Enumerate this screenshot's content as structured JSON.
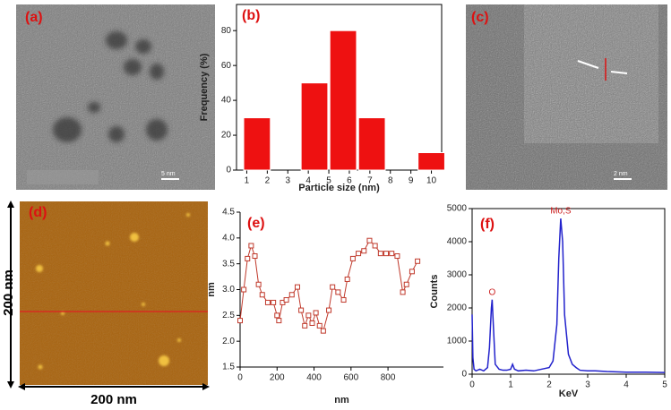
{
  "images": [
    {
      "label": "(a)",
      "scale_bar": "5 nm"
    },
    {
      "label": "(c)",
      "scale_bar": "2 nm"
    },
    {
      "label": "(d)",
      "width": "200 nm",
      "height": "200 nm"
    }
  ],
  "chart_data": [
    {
      "type": "bar",
      "panel_label": "(b)",
      "xlabel": "Particle size (nm)",
      "ylabel": "Frequency (%)",
      "x": [
        1.5,
        4.3,
        5.7,
        7.1,
        10
      ],
      "values": [
        30,
        50,
        80,
        30,
        10
      ],
      "color": "#ee1111",
      "xlim": [
        0.5,
        10.5
      ],
      "xticks": [
        1,
        2,
        3,
        4,
        5,
        6,
        7,
        8,
        9,
        10
      ],
      "ylim": [
        0,
        95
      ],
      "yticks": [
        0,
        20,
        40,
        60,
        80
      ]
    },
    {
      "type": "line",
      "panel_label": "(e)",
      "xlabel": "nm",
      "ylabel": "nm",
      "marker": "square",
      "color": "#c0392b",
      "x": [
        0,
        20,
        40,
        60,
        80,
        100,
        120,
        150,
        180,
        200,
        210,
        230,
        250,
        280,
        310,
        330,
        350,
        370,
        390,
        410,
        430,
        450,
        480,
        500,
        530,
        560,
        580,
        610,
        640,
        670,
        700,
        730,
        760,
        790,
        820,
        850,
        880,
        900,
        930,
        960
      ],
      "values": [
        2.4,
        3.0,
        3.6,
        3.85,
        3.65,
        3.1,
        2.9,
        2.75,
        2.75,
        2.5,
        2.4,
        2.75,
        2.8,
        2.9,
        3.05,
        2.6,
        2.3,
        2.5,
        2.35,
        2.55,
        2.3,
        2.2,
        2.6,
        3.05,
        2.95,
        2.8,
        3.2,
        3.6,
        3.7,
        3.75,
        3.95,
        3.85,
        3.7,
        3.7,
        3.7,
        3.65,
        2.95,
        3.1,
        3.35,
        3.55
      ],
      "xlim": [
        0,
        1100
      ],
      "xticks": [
        0,
        200,
        400,
        600,
        800
      ],
      "ylim": [
        1.5,
        4.5
      ],
      "yticks": [
        1.5,
        {
          "value": 2,
          "label": "2.0"
        },
        2.5,
        {
          "value": 3,
          "label": "3.0"
        },
        3.5,
        {
          "value": 4,
          "label": "4.0"
        },
        4.5
      ]
    },
    {
      "type": "line",
      "panel_label": "(f)",
      "xlabel": "KeV",
      "ylabel": "Counts",
      "color": "#2222cc",
      "x": [
        0,
        0.02,
        0.05,
        0.1,
        0.2,
        0.3,
        0.4,
        0.45,
        0.5,
        0.52,
        0.55,
        0.6,
        0.7,
        0.8,
        0.9,
        1.0,
        1.05,
        1.1,
        1.2,
        1.4,
        1.6,
        1.8,
        2.0,
        2.1,
        2.2,
        2.25,
        2.3,
        2.35,
        2.4,
        2.5,
        2.6,
        2.7,
        2.8,
        3.0,
        3.2,
        3.5,
        4.0,
        4.5,
        5.0
      ],
      "values": [
        1800,
        500,
        150,
        100,
        150,
        100,
        200,
        800,
        2000,
        2250,
        1500,
        300,
        150,
        120,
        120,
        150,
        300,
        150,
        100,
        120,
        100,
        150,
        200,
        400,
        1500,
        3500,
        4700,
        4000,
        1800,
        600,
        300,
        200,
        120,
        100,
        100,
        80,
        60,
        60,
        50
      ],
      "xlim": [
        0,
        5
      ],
      "xticks": [
        0,
        1,
        2,
        3,
        4,
        5
      ],
      "ylim": [
        0,
        5000
      ],
      "yticks": [
        0,
        1000,
        2000,
        3000,
        4000,
        5000
      ],
      "annotations": [
        "O",
        "Mo,S"
      ]
    }
  ]
}
